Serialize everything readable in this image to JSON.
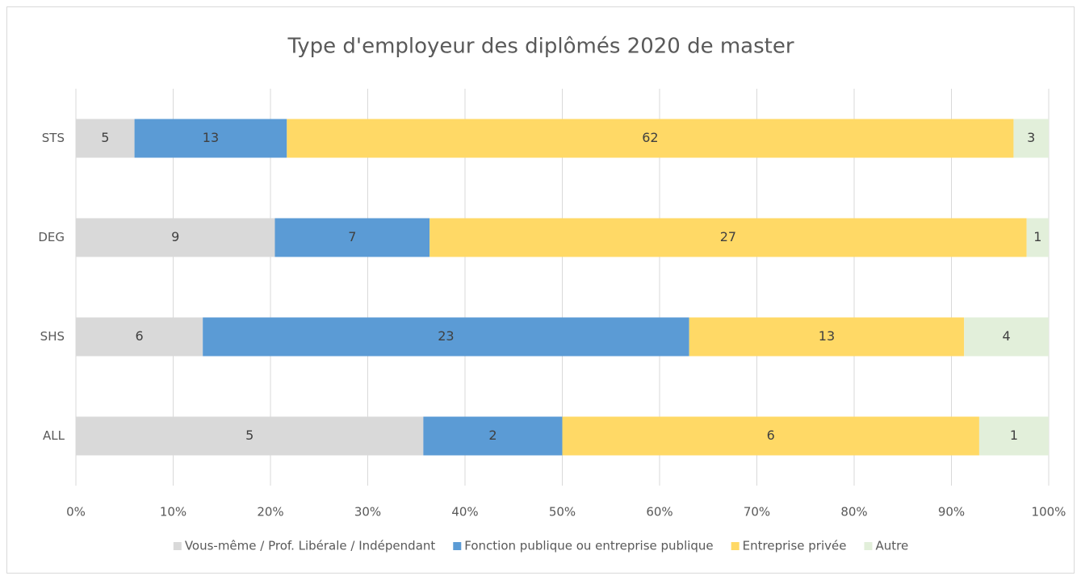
{
  "chart_data": {
    "type": "bar",
    "orientation": "horizontal",
    "stack": "percent",
    "title": "Type d'employeur des diplômés 2020 de master",
    "categories": [
      "STS",
      "DEG",
      "SHS",
      "ALL"
    ],
    "series": [
      {
        "name": "Vous-même / Prof. Libérale / Indépendant",
        "color": "#d9d9d9",
        "values": [
          5,
          9,
          6,
          5
        ]
      },
      {
        "name": "Fonction publique ou entreprise publique",
        "color": "#5b9bd5",
        "values": [
          13,
          7,
          23,
          2
        ]
      },
      {
        "name": "Entreprise privée",
        "color": "#ffd966",
        "values": [
          62,
          27,
          13,
          6
        ]
      },
      {
        "name": "Autre",
        "color": "#e2efda",
        "values": [
          3,
          1,
          4,
          1
        ]
      }
    ],
    "xlim": [
      0,
      100
    ],
    "xticks": [
      {
        "value": 0,
        "label": "0%"
      },
      {
        "value": 10,
        "label": "10%"
      },
      {
        "value": 20,
        "label": "20%"
      },
      {
        "value": 30,
        "label": "30%"
      },
      {
        "value": 40,
        "label": "40%"
      },
      {
        "value": 50,
        "label": "50%"
      },
      {
        "value": 60,
        "label": "60%"
      },
      {
        "value": 70,
        "label": "70%"
      },
      {
        "value": 80,
        "label": "80%"
      },
      {
        "value": 90,
        "label": "90%"
      },
      {
        "value": 100,
        "label": "100%"
      }
    ],
    "grid": true,
    "legend": "bottom"
  }
}
